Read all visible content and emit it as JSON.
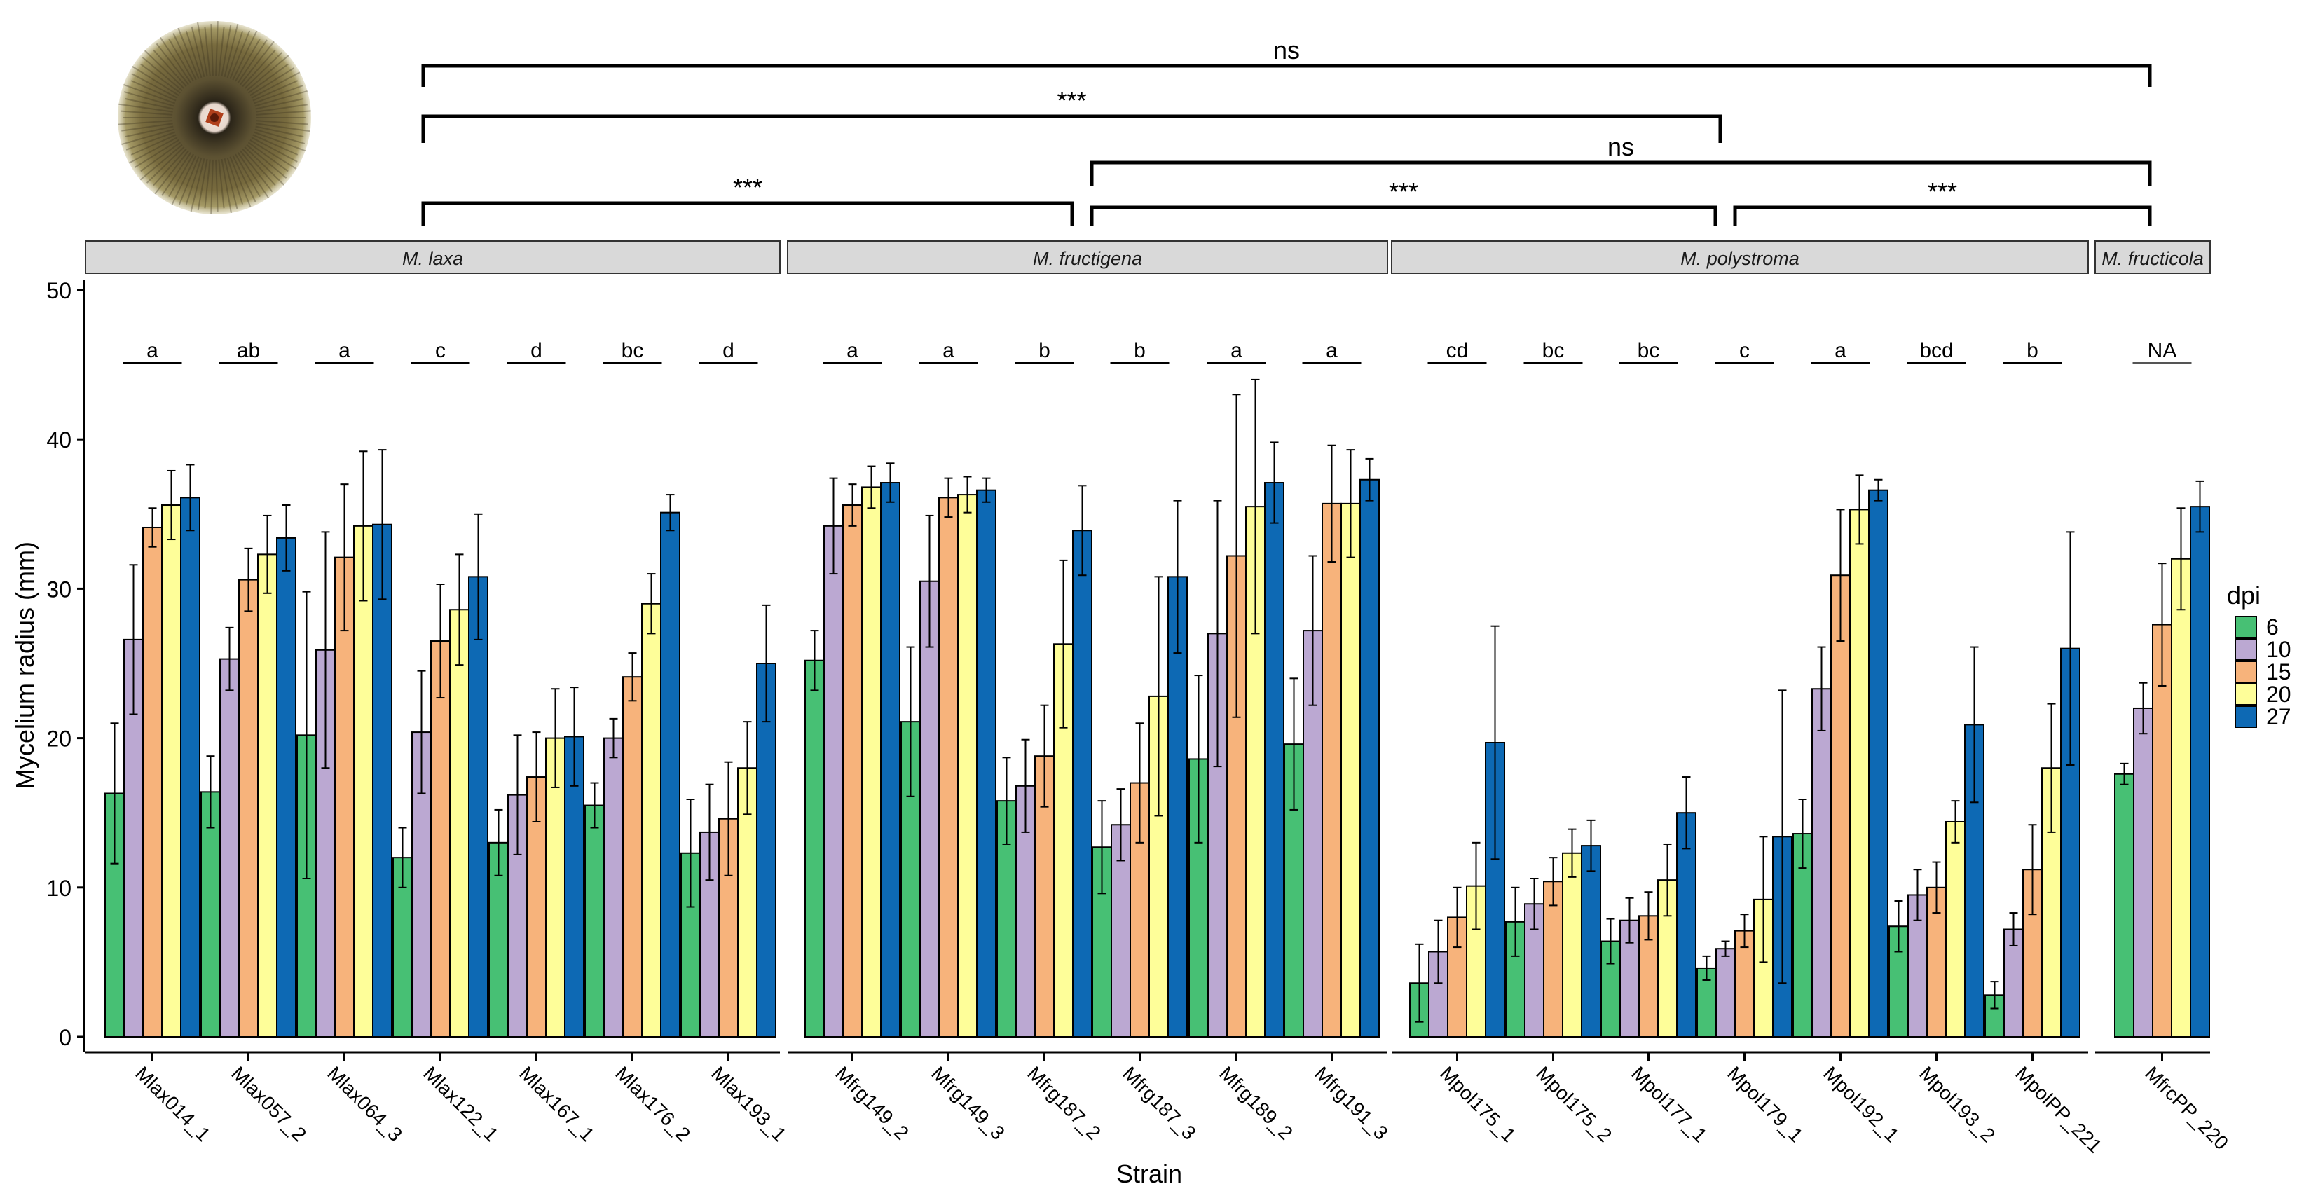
{
  "chart_data": {
    "type": "bar",
    "xlabel": "Strain",
    "ylabel": "Mycelium radius (mm)",
    "ylim": [
      0,
      50
    ],
    "yticks": [
      0,
      10,
      20,
      30,
      40,
      50
    ],
    "grid": false,
    "legend": {
      "title": "dpi",
      "placement": "right",
      "entries": [
        "6",
        "10",
        "15",
        "20",
        "27"
      ]
    },
    "series_colors": [
      "#47c074",
      "#bba8d2",
      "#f7b37b",
      "#fefe99",
      "#0d69b4"
    ],
    "facets": [
      {
        "label": "M. laxa",
        "strains": [
          {
            "name": "Mlax014_1",
            "letter": "a",
            "values": [
              16.3,
              26.6,
              34.1,
              35.6,
              36.1
            ],
            "errors": [
              4.7,
              5.0,
              1.3,
              2.3,
              2.2
            ]
          },
          {
            "name": "Mlax057_2",
            "letter": "ab",
            "values": [
              16.4,
              25.3,
              30.6,
              32.3,
              33.4
            ],
            "errors": [
              2.4,
              2.1,
              2.1,
              2.6,
              2.2
            ]
          },
          {
            "name": "Mlax064_3",
            "letter": "a",
            "values": [
              20.2,
              25.9,
              32.1,
              34.2,
              34.3
            ],
            "errors": [
              9.6,
              7.9,
              4.9,
              5.0,
              5.0
            ]
          },
          {
            "name": "Mlax122_1",
            "letter": "c",
            "values": [
              12.0,
              20.4,
              26.5,
              28.6,
              30.8
            ],
            "errors": [
              2.0,
              4.1,
              3.8,
              3.7,
              4.2
            ]
          },
          {
            "name": "Mlax167_1",
            "letter": "d",
            "values": [
              13.0,
              16.2,
              17.4,
              20.0,
              20.1
            ],
            "errors": [
              2.2,
              4.0,
              3.0,
              3.3,
              3.3
            ]
          },
          {
            "name": "Mlax176_2",
            "letter": "bc",
            "values": [
              15.5,
              20.0,
              24.1,
              29.0,
              35.1
            ],
            "errors": [
              1.5,
              1.3,
              1.6,
              2.0,
              1.2
            ]
          },
          {
            "name": "Mlax193_1",
            "letter": "d",
            "values": [
              12.3,
              13.7,
              14.6,
              18.0,
              25.0
            ],
            "errors": [
              3.6,
              3.2,
              3.8,
              3.1,
              3.9
            ]
          }
        ]
      },
      {
        "label": "M. fructigena",
        "strains": [
          {
            "name": "Mfrg149_2",
            "letter": "a",
            "values": [
              25.2,
              34.2,
              35.6,
              36.8,
              37.1
            ],
            "errors": [
              2.0,
              3.2,
              1.4,
              1.4,
              1.3
            ]
          },
          {
            "name": "Mfrg149_3",
            "letter": "a",
            "values": [
              21.1,
              30.5,
              36.1,
              36.3,
              36.6
            ],
            "errors": [
              5.0,
              4.4,
              1.3,
              1.2,
              0.8
            ]
          },
          {
            "name": "Mfrg187_2",
            "letter": "b",
            "values": [
              15.8,
              16.8,
              18.8,
              26.3,
              33.9
            ],
            "errors": [
              2.9,
              3.1,
              3.4,
              5.6,
              3.0
            ]
          },
          {
            "name": "Mfrg187_3",
            "letter": "b",
            "values": [
              12.7,
              14.2,
              17.0,
              22.8,
              30.8
            ],
            "errors": [
              3.1,
              2.4,
              4.0,
              8.0,
              5.1
            ]
          },
          {
            "name": "Mfrg189_2",
            "letter": "a",
            "values": [
              18.6,
              27.0,
              32.2,
              35.5,
              37.1
            ],
            "errors": [
              5.6,
              8.9,
              10.8,
              8.5,
              2.7
            ]
          },
          {
            "name": "Mfrg191_3",
            "letter": "a",
            "values": [
              19.6,
              27.2,
              35.7,
              35.7,
              37.3
            ],
            "errors": [
              4.4,
              5.0,
              3.9,
              3.6,
              1.4
            ]
          }
        ]
      },
      {
        "label": "M. polystroma",
        "strains": [
          {
            "name": "Mpol175_1",
            "letter": "cd",
            "values": [
              3.6,
              5.7,
              8.0,
              10.1,
              19.7
            ],
            "errors": [
              2.6,
              2.1,
              2.0,
              2.9,
              7.8
            ]
          },
          {
            "name": "Mpol175_2",
            "letter": "bc",
            "values": [
              7.7,
              8.9,
              10.4,
              12.3,
              12.8
            ],
            "errors": [
              2.3,
              1.7,
              1.6,
              1.6,
              1.7
            ]
          },
          {
            "name": "Mpol177_1",
            "letter": "bc",
            "values": [
              6.4,
              7.8,
              8.1,
              10.5,
              15.0
            ],
            "errors": [
              1.5,
              1.5,
              1.6,
              2.4,
              2.4
            ]
          },
          {
            "name": "Mpol179_1",
            "letter": "c",
            "values": [
              4.6,
              5.9,
              7.1,
              9.2,
              13.4
            ],
            "errors": [
              0.8,
              0.5,
              1.1,
              4.2,
              9.8
            ]
          },
          {
            "name": "Mpol192_1",
            "letter": "a",
            "values": [
              13.6,
              23.3,
              30.9,
              35.3,
              36.6
            ],
            "errors": [
              2.3,
              2.8,
              4.4,
              2.3,
              0.7
            ]
          },
          {
            "name": "Mpol193_2",
            "letter": "bcd",
            "values": [
              7.4,
              9.5,
              10.0,
              14.4,
              20.9
            ],
            "errors": [
              1.7,
              1.7,
              1.7,
              1.4,
              5.2
            ]
          },
          {
            "name": "MpolPP_221",
            "letter": "b",
            "values": [
              2.8,
              7.2,
              11.2,
              18.0,
              26.0
            ],
            "errors": [
              0.9,
              1.1,
              3.0,
              4.3,
              7.8
            ]
          }
        ]
      },
      {
        "label": "M. fructicola",
        "strains": [
          {
            "name": "MfrcPP_220",
            "letter": "NA",
            "values": [
              17.6,
              22.0,
              27.6,
              32.0,
              35.5
            ],
            "errors": [
              0.7,
              1.7,
              4.1,
              3.4,
              1.7
            ]
          }
        ]
      }
    ],
    "significance_brackets": [
      {
        "label": "ns",
        "from": "M. laxa",
        "to": "M. fructicola"
      },
      {
        "label": "***",
        "from": "M. laxa",
        "to": "M. polystroma"
      },
      {
        "label": "ns",
        "from": "M. fructigena",
        "to": "M. fructicola"
      },
      {
        "label": "***",
        "from": "M. laxa",
        "to": "M. fructigena"
      },
      {
        "label": "***",
        "from": "M. fructigena",
        "to": "M. polystroma"
      },
      {
        "label": "***",
        "from": "M. polystroma",
        "to": "M. fructicola"
      }
    ]
  },
  "colony_image": "fungal-colony-photo"
}
